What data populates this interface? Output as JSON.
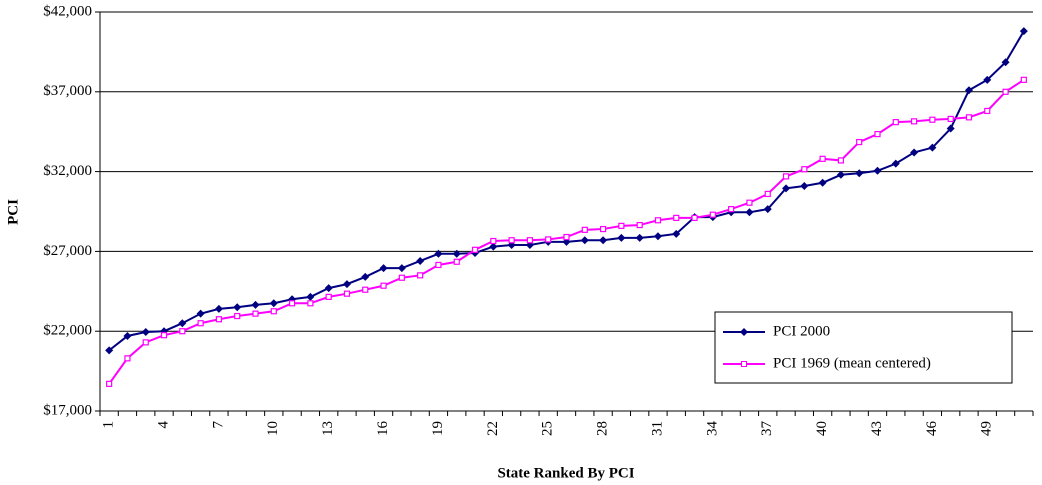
{
  "chart_data": {
    "type": "line",
    "x_label": "State Ranked By PCI",
    "y_label": "PCI",
    "categories": [
      "1",
      null,
      null,
      "4",
      null,
      null,
      "7",
      null,
      null,
      "10",
      null,
      null,
      "13",
      null,
      null,
      "16",
      null,
      null,
      "19",
      null,
      null,
      "22",
      null,
      null,
      "25",
      null,
      null,
      "28",
      null,
      null,
      "31",
      null,
      null,
      "34",
      null,
      null,
      "37",
      null,
      null,
      "40",
      null,
      null,
      "43",
      null,
      null,
      "46",
      null,
      null,
      "49",
      null,
      null
    ],
    "series": [
      {
        "name": "PCI 2000",
        "color": "#000080",
        "marker": "diamond",
        "values": [
          20800,
          21700,
          21950,
          22000,
          22500,
          23100,
          23400,
          23500,
          23650,
          23750,
          24000,
          24150,
          24700,
          24950,
          25400,
          25950,
          25950,
          26400,
          26850,
          26850,
          26900,
          27300,
          27400,
          27400,
          27600,
          27600,
          27700,
          27700,
          27850,
          27850,
          27950,
          28100,
          29150,
          29150,
          29450,
          29450,
          29650,
          30950,
          31100,
          31300,
          31800,
          31900,
          32050,
          32500,
          33200,
          33500,
          34700,
          37100,
          37750,
          38850,
          40800
        ]
      },
      {
        "name": "PCI 1969 (mean centered)",
        "color": "#ff00ff",
        "marker": "square",
        "values": [
          18700,
          20300,
          21300,
          21750,
          22000,
          22500,
          22750,
          22950,
          23100,
          23250,
          23750,
          23750,
          24150,
          24350,
          24600,
          24850,
          25350,
          25500,
          26150,
          26350,
          27100,
          27650,
          27700,
          27700,
          27750,
          27900,
          28350,
          28400,
          28600,
          28650,
          28950,
          29100,
          29100,
          29300,
          29650,
          30050,
          30600,
          31700,
          32150,
          32800,
          32700,
          33850,
          34350,
          35100,
          35150,
          35250,
          35300,
          35400,
          35800,
          37000,
          37750
        ]
      }
    ],
    "ylim": [
      17000,
      42000
    ],
    "yticks": [
      {
        "value": 17000,
        "label": "$17,000"
      },
      {
        "value": 22000,
        "label": "$22,000"
      },
      {
        "value": 27000,
        "label": "$27,000"
      },
      {
        "value": 32000,
        "label": "$32,000"
      },
      {
        "value": 37000,
        "label": "$37,000"
      },
      {
        "value": 42000,
        "label": "$42,000"
      }
    ],
    "grid": true,
    "legend": "lower-right"
  }
}
